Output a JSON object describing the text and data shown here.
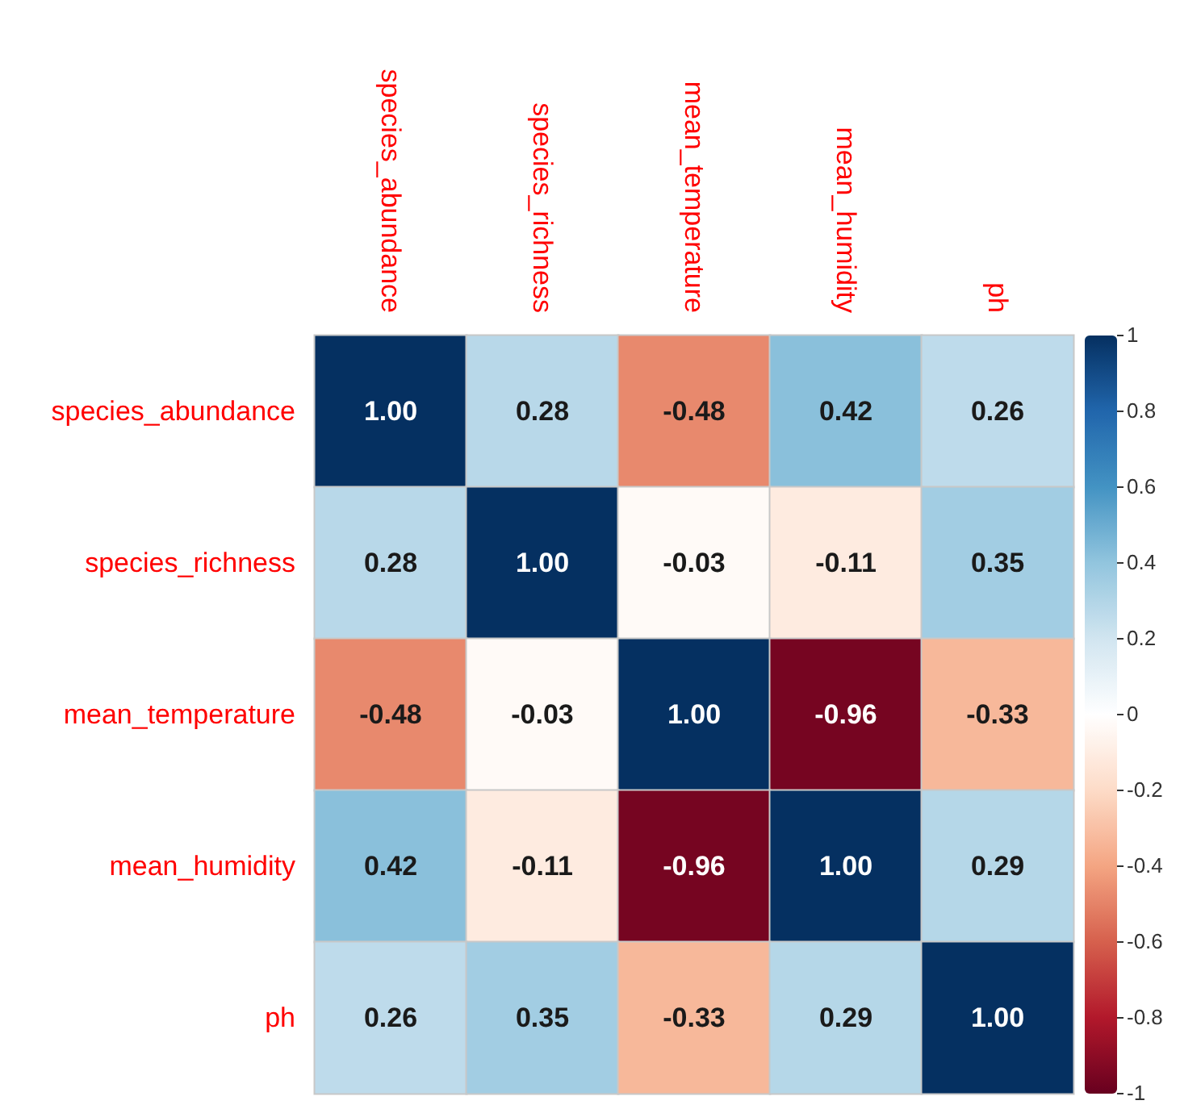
{
  "chart_data": {
    "type": "heatmap",
    "categories": [
      "species_abundance",
      "species_richness",
      "mean_temperature",
      "mean_humidity",
      "ph"
    ],
    "y_categories": [
      "species_abundance",
      "species_richness",
      "mean_temperature",
      "mean_humidity",
      "ph"
    ],
    "cells": [
      [
        1.0,
        0.28,
        -0.48,
        0.42,
        0.26
      ],
      [
        0.28,
        1.0,
        -0.03,
        -0.11,
        0.35
      ],
      [
        -0.48,
        -0.03,
        1.0,
        -0.96,
        -0.33
      ],
      [
        0.42,
        -0.11,
        -0.96,
        1.0,
        0.29
      ],
      [
        0.26,
        0.35,
        -0.33,
        0.29,
        1.0
      ]
    ],
    "cell_labels": [
      [
        "1.00",
        "0.28",
        "-0.48",
        "0.42",
        "0.26"
      ],
      [
        "0.28",
        "1.00",
        "-0.03",
        "-0.11",
        "0.35"
      ],
      [
        "-0.48",
        "-0.03",
        "1.00",
        "-0.96",
        "-0.33"
      ],
      [
        "0.42",
        "-0.11",
        "-0.96",
        "1.00",
        "0.29"
      ],
      [
        "0.26",
        "0.35",
        "-0.33",
        "0.29",
        "1.00"
      ]
    ],
    "clim": [
      -1,
      1
    ],
    "cticks": [
      -1,
      -0.8,
      -0.6,
      -0.4,
      -0.2,
      0,
      0.2,
      0.4,
      0.6,
      0.8,
      1
    ]
  }
}
